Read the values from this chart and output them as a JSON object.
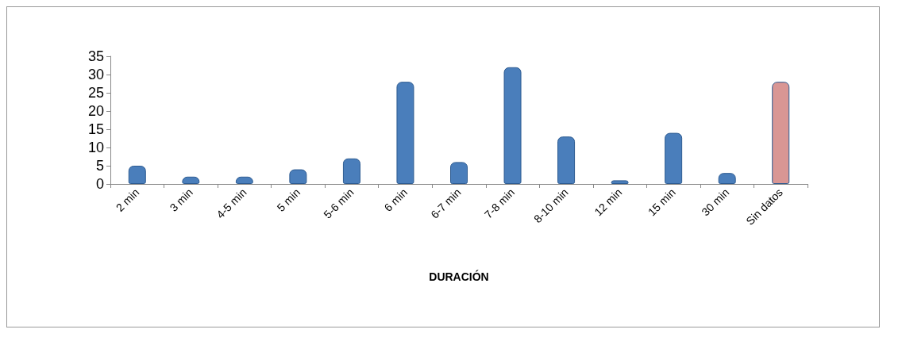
{
  "chart_data": {
    "type": "bar",
    "xlabel": "DURACIÓN",
    "categories": [
      "2 min",
      "3 min",
      "4-5 min",
      "5 min",
      "5-6 min",
      "6 min",
      "6-7 min",
      "7-8 min",
      "8-10 min",
      "12 min",
      "15 min",
      "30 min",
      "Sin datos"
    ],
    "values": [
      5,
      2,
      2,
      4,
      7,
      28,
      6,
      32,
      13,
      1,
      14,
      3,
      28
    ],
    "colors": [
      "#4a7ebb",
      "#4a7ebb",
      "#4a7ebb",
      "#4a7ebb",
      "#4a7ebb",
      "#4a7ebb",
      "#4a7ebb",
      "#4a7ebb",
      "#4a7ebb",
      "#4a7ebb",
      "#4a7ebb",
      "#4a7ebb",
      "#d99694"
    ],
    "ylim": [
      0,
      35
    ],
    "yticks": [
      0,
      5,
      10,
      15,
      20,
      25,
      30,
      35
    ],
    "grid": false
  }
}
